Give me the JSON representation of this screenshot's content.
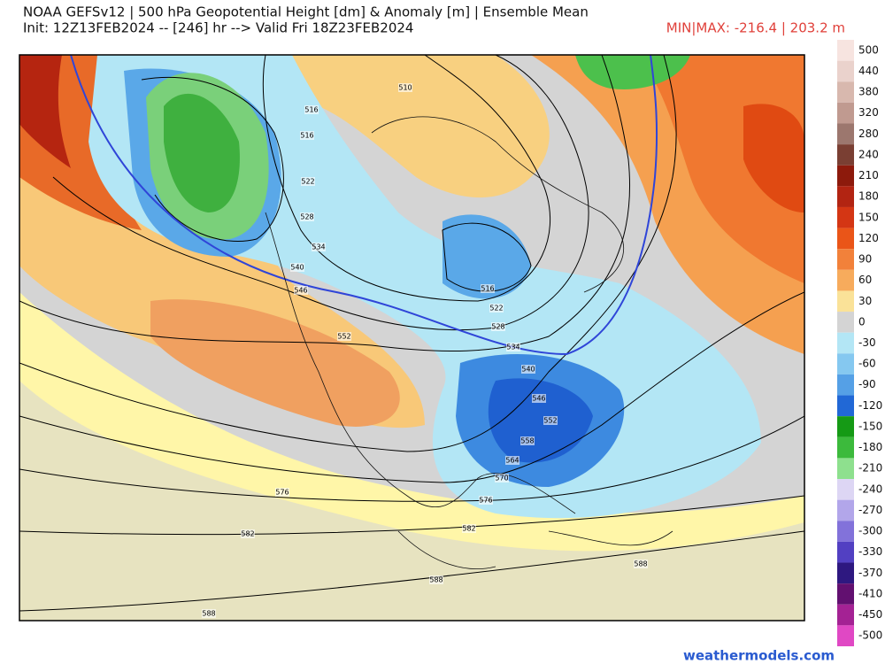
{
  "header": {
    "title": "NOAA GEFSv12 | 500 hPa Geopotential Height [dm] & Anomaly [m] | Ensemble Mean",
    "init": "Init: 12Z13FEB2024 -- [246] hr --> Valid Fri 18Z23FEB2024",
    "minmax": "MIN|MAX: -216.4 | 203.2 m"
  },
  "colorbar": {
    "labels": [
      "500",
      "440",
      "380",
      "320",
      "280",
      "240",
      "210",
      "180",
      "150",
      "120",
      "90",
      "60",
      "30",
      "0",
      "-30",
      "-60",
      "-90",
      "-120",
      "-150",
      "-180",
      "-210",
      "-240",
      "-270",
      "-300",
      "-330",
      "-370",
      "-410",
      "-450",
      "-500"
    ]
  },
  "map": {
    "contour_labels": [
      "510",
      "516",
      "516",
      "522",
      "528",
      "534",
      "540",
      "546",
      "552",
      "516",
      "522",
      "528",
      "534",
      "540",
      "546",
      "552",
      "558",
      "564",
      "570",
      "576",
      "576",
      "582",
      "582",
      "588",
      "588",
      "588"
    ]
  },
  "footer": {
    "watermark": "weathermodels.com"
  }
}
